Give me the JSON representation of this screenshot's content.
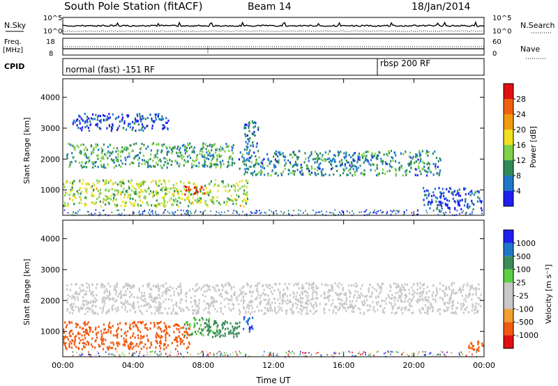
{
  "header": {
    "station": "South Pole Station (fitACF)",
    "beam": "Beam 14",
    "date": "18/Jan/2014"
  },
  "top_panels": {
    "nsky_label": "N.Sky",
    "nsky_ticks": [
      "10^5",
      "10^0"
    ],
    "nsearch_label": "N.Search",
    "nsearch_ticks": [
      "10^5",
      "10^0"
    ],
    "freq_label": "Freq.",
    "freq_unit": "[MHz]",
    "freq_ticks": [
      "18",
      "8"
    ],
    "nave_label": "Nave",
    "nave_ticks": [
      "60",
      "0"
    ],
    "cpid_label": "CPID",
    "cpid_segments": [
      {
        "label": "normal (fast) -151 RF",
        "start_hour": 0
      },
      {
        "label": "rbsp 200 RF",
        "start_hour": 18
      }
    ]
  },
  "colors": {
    "power": [
      "#1e1ef0",
      "#1e78c8",
      "#2e8b57",
      "#7fd04a",
      "#f0e020",
      "#f09a10",
      "#f06010",
      "#e01010"
    ],
    "velocity": [
      "#e01010",
      "#f05a10",
      "#f0a030",
      "#c8c8c8",
      "#c8c8c8",
      "#5ad040",
      "#3c8c5a",
      "#1e78c8",
      "#1e1ef0"
    ]
  },
  "chart_data": [
    {
      "type": "heatmap",
      "title": "South Pole Station (fitACF)  Beam 14  18/Jan/2014",
      "xlabel": "",
      "ylabel": "Slant Range [km]",
      "xlim": [
        "00:00",
        "24:00"
      ],
      "ylim": [
        180,
        4600
      ],
      "x_ticks": [
        "00:00",
        "04:00",
        "08:00",
        "12:00",
        "16:00",
        "20:00",
        "00:00"
      ],
      "y_ticks": [
        "1000",
        "2000",
        "3000",
        "4000"
      ],
      "colorbar": {
        "label": "Power [dB]",
        "ticks": [
          "28",
          "24",
          "20",
          "16",
          "12",
          "8",
          "4"
        ],
        "range": [
          0,
          30
        ]
      },
      "regions": [
        {
          "t0": 0.2,
          "t1": 9.8,
          "r0": 1750,
          "r1": 2550,
          "level": 10
        },
        {
          "t0": 10.0,
          "t1": 21.5,
          "r0": 1500,
          "r1": 2300,
          "level": 8
        },
        {
          "t0": 0.0,
          "t1": 10.5,
          "r0": 500,
          "r1": 1350,
          "level": 14
        },
        {
          "t0": 6.9,
          "t1": 8.1,
          "r0": 850,
          "r1": 1150,
          "level": 28
        },
        {
          "t0": 0.5,
          "t1": 6.0,
          "r0": 2950,
          "r1": 3500,
          "level": 4
        },
        {
          "t0": 10.3,
          "t1": 11.1,
          "r0": 2200,
          "r1": 3300,
          "level": 6
        },
        {
          "t0": 20.5,
          "t1": 23.9,
          "r0": 400,
          "r1": 1100,
          "level": 4
        }
      ]
    },
    {
      "type": "heatmap",
      "title": "",
      "xlabel": "Time UT",
      "ylabel": "Slant Range [km]",
      "xlim": [
        "00:00",
        "24:00"
      ],
      "ylim": [
        180,
        4600
      ],
      "x_ticks": [
        "00:00",
        "04:00",
        "08:00",
        "12:00",
        "16:00",
        "20:00",
        "00:00"
      ],
      "y_ticks": [
        "1000",
        "2000",
        "3000",
        "4000"
      ],
      "colorbar": {
        "label": "Velocity [m s⁻¹]",
        "ticks": [
          "1000",
          "500",
          "100",
          "25",
          "-25",
          "-100",
          "-500",
          "-1000"
        ],
        "range": [
          -1000,
          1000
        ]
      },
      "regions": [
        {
          "t0": 0.2,
          "t1": 23.8,
          "r0": 1600,
          "r1": 2600,
          "level": 0
        },
        {
          "t0": 0.0,
          "t1": 7.2,
          "r0": 450,
          "r1": 1350,
          "level": -300
        },
        {
          "t0": 6.9,
          "t1": 8.8,
          "r0": 900,
          "r1": 1500,
          "level": 120
        },
        {
          "t0": 8.2,
          "t1": 10.1,
          "r0": 850,
          "r1": 1450,
          "level": 300
        },
        {
          "t0": 10.2,
          "t1": 10.8,
          "r0": 1000,
          "r1": 1500,
          "level": 900
        },
        {
          "t0": 23.0,
          "t1": 23.9,
          "r0": 400,
          "r1": 800,
          "level": -300
        }
      ]
    }
  ]
}
